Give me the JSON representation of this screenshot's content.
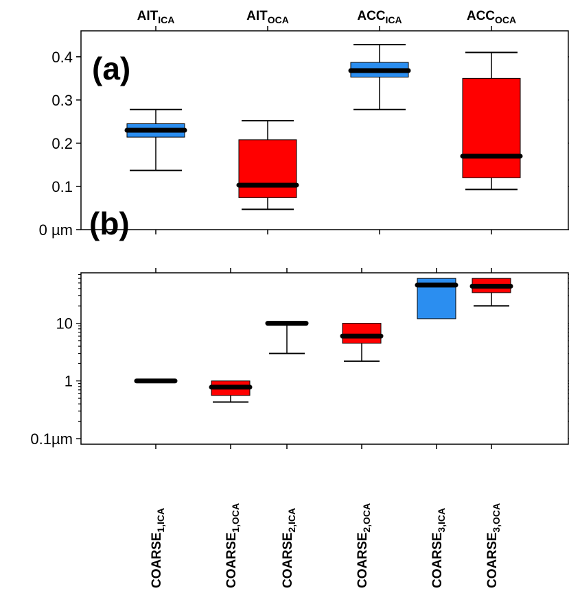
{
  "chart_data": [
    {
      "type": "box",
      "panel_label": "(a)",
      "top_labels": [
        {
          "base": "AIT",
          "sub": "ICA"
        },
        {
          "base": "AIT",
          "sub": "OCA"
        },
        {
          "base": "ACC",
          "sub": "ICA"
        },
        {
          "base": "ACC",
          "sub": "OCA"
        }
      ],
      "y_ticks": [
        {
          "value": 0,
          "label": "0 µm"
        },
        {
          "value": 0.1,
          "label": "0.1"
        },
        {
          "value": 0.2,
          "label": "0.2"
        },
        {
          "value": 0.3,
          "label": "0.3"
        },
        {
          "value": 0.4,
          "label": "0.4"
        }
      ],
      "ylim": [
        0,
        0.46
      ],
      "boxes": [
        {
          "min": 0.137,
          "q1": 0.214,
          "median": 0.23,
          "q3": 0.245,
          "max": 0.278,
          "color": "#2b8ef0"
        },
        {
          "min": 0.047,
          "q1": 0.074,
          "median": 0.103,
          "q3": 0.208,
          "max": 0.252,
          "color": "#ff0000"
        },
        {
          "min": 0.278,
          "q1": 0.353,
          "median": 0.368,
          "q3": 0.387,
          "max": 0.428,
          "color": "#2b8ef0"
        },
        {
          "min": 0.093,
          "q1": 0.12,
          "median": 0.17,
          "q3": 0.35,
          "max": 0.41,
          "color": "#ff0000"
        }
      ]
    },
    {
      "type": "box",
      "panel_label": "(b)",
      "log_scale": true,
      "x_labels": [
        {
          "base": "COARSE",
          "sub": "1,ICA"
        },
        {
          "base": "COARSE",
          "sub": "1,OCA"
        },
        {
          "base": "COARSE",
          "sub": "2,ICA"
        },
        {
          "base": "COARSE",
          "sub": "2,OCA"
        },
        {
          "base": "COARSE",
          "sub": "3,ICA"
        },
        {
          "base": "COARSE",
          "sub": "3,OCA"
        }
      ],
      "y_ticks": [
        {
          "value": 0.1,
          "label": "0.1µm"
        },
        {
          "value": 1,
          "label": "1"
        },
        {
          "value": 10,
          "label": "10"
        }
      ],
      "ylim": [
        0.08,
        75
      ],
      "boxes": [
        {
          "min": 1.0,
          "q1": 1.0,
          "median": 1.0,
          "q3": 1.0,
          "max": 1.0,
          "color": "#ff0000"
        },
        {
          "min": 0.43,
          "q1": 0.56,
          "median": 0.78,
          "q3": 1.0,
          "max": 1.0,
          "color": "#ff0000"
        },
        {
          "min": 3.0,
          "q1": 10.0,
          "median": 10.0,
          "q3": 10.0,
          "max": 10.0,
          "color": "#ff0000"
        },
        {
          "min": 2.2,
          "q1": 4.5,
          "median": 6.0,
          "q3": 10.0,
          "max": 10.0,
          "color": "#ff0000"
        },
        {
          "min": 12.0,
          "q1": 12.0,
          "median": 46.0,
          "q3": 60.0,
          "max": 60.0,
          "color": "#2b8ef0"
        },
        {
          "min": 20.0,
          "q1": 34.0,
          "median": 44.0,
          "q3": 60.0,
          "max": 60.0,
          "color": "#ff0000"
        }
      ]
    }
  ]
}
